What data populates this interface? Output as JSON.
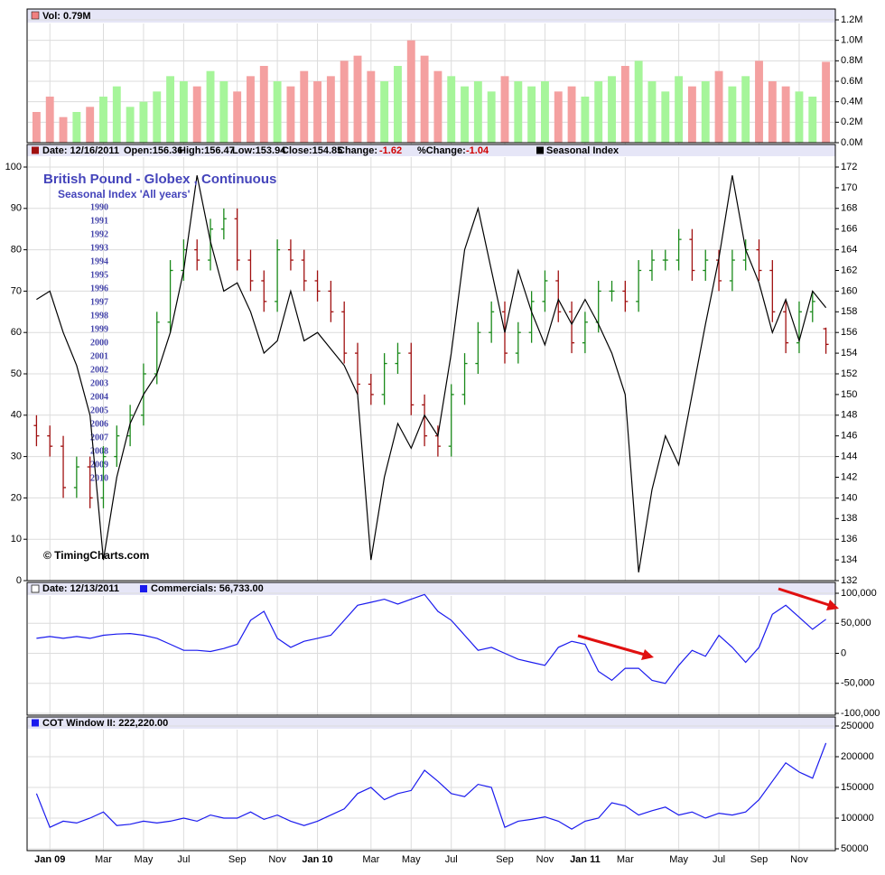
{
  "chart_data": [
    {
      "type": "bar",
      "legend": "Vol: 0.79M",
      "values": [
        0.3,
        0.45,
        0.25,
        0.3,
        0.35,
        0.45,
        0.55,
        0.35,
        0.4,
        0.5,
        0.65,
        0.6,
        0.55,
        0.7,
        0.6,
        0.5,
        0.65,
        0.75,
        0.6,
        0.55,
        0.7,
        0.6,
        0.65,
        0.8,
        0.85,
        0.7,
        0.6,
        0.75,
        1.0,
        0.85,
        0.7,
        0.65,
        0.55,
        0.6,
        0.5,
        0.65,
        0.6,
        0.55,
        0.6,
        0.5,
        0.55,
        0.45,
        0.6,
        0.65,
        0.75,
        0.8,
        0.6,
        0.5,
        0.65,
        0.55,
        0.6,
        0.7,
        0.55,
        0.65,
        0.8,
        0.6,
        0.55,
        0.5,
        0.45,
        0.79
      ],
      "up_color": "#a6f59a",
      "down_color": "#f4a0a0",
      "ylim": [
        0,
        1.2
      ],
      "yticks": [
        {
          "value": 0,
          "label": "0.0M"
        },
        {
          "value": 0.2,
          "label": "0.2M"
        },
        {
          "value": 0.4,
          "label": "0.4M"
        },
        {
          "value": 0.6,
          "label": "0.6M"
        },
        {
          "value": 0.8,
          "label": "0.8M"
        },
        {
          "value": 1.0,
          "label": "1.0M"
        },
        {
          "value": 1.2,
          "label": "1.2M"
        }
      ],
      "grid": true
    },
    {
      "type": "ohlc",
      "header": {
        "date": "Date: 12/16/2011",
        "open": "Open:156.36",
        "high": "High:156.47",
        "low": "Low:153.94",
        "close": "Close:154.85",
        "change_label": "Change:",
        "change": "-1.62",
        "pct_change_label": "%Change:",
        "pct_change": "-1.04"
      },
      "title": "British Pound - Globex , Continuous",
      "subtitle": "Seasonal Index 'All years'",
      "years": [
        "1990",
        "1991",
        "1992",
        "1993",
        "1994",
        "1995",
        "1996",
        "1997",
        "1998",
        "1999",
        "2000",
        "2001",
        "2002",
        "2003",
        "2004",
        "2005",
        "2006",
        "2007",
        "2008",
        "2009",
        "2010"
      ],
      "watermark": "© TimingCharts.com",
      "open": [
        147,
        146,
        145,
        141,
        143,
        140,
        144,
        146,
        148,
        152,
        157,
        162,
        164,
        163,
        166,
        167,
        163,
        161,
        159,
        164,
        163,
        161,
        160,
        158,
        154,
        151,
        150,
        153,
        154,
        149,
        146,
        145,
        150,
        153,
        156,
        158,
        154,
        156,
        159,
        161,
        158,
        155,
        157,
        160,
        160,
        159,
        162,
        163,
        163,
        165,
        162,
        163,
        161,
        163,
        164,
        162,
        158,
        155,
        158,
        156.36
      ],
      "high": [
        148,
        147,
        146,
        144,
        144,
        145,
        147,
        149,
        153,
        158,
        163,
        165,
        165,
        167,
        168,
        168,
        164,
        162,
        165,
        165,
        164,
        162,
        161,
        159,
        155,
        152,
        154,
        155,
        155,
        150,
        147,
        151,
        154,
        157,
        159,
        159,
        157,
        160,
        162,
        162,
        159,
        158,
        161,
        161,
        161,
        163,
        164,
        164,
        166,
        166,
        164,
        164,
        164,
        165,
        165,
        163,
        159,
        159,
        160,
        156.47
      ],
      "low": [
        145,
        144,
        140,
        140,
        139,
        139,
        143,
        145,
        147,
        151,
        156,
        161,
        162,
        162,
        165,
        162,
        160,
        158,
        158,
        162,
        160,
        159,
        157,
        153,
        150,
        149,
        149,
        152,
        148,
        145,
        144,
        144,
        149,
        152,
        155,
        153,
        153,
        155,
        158,
        157,
        154,
        154,
        156,
        159,
        158,
        158,
        161,
        162,
        162,
        161,
        161,
        160,
        160,
        162,
        161,
        157,
        154,
        154,
        157,
        153.94
      ],
      "close": [
        146,
        145,
        141,
        143,
        140,
        144,
        146,
        148,
        152,
        157,
        162,
        164,
        163,
        166,
        167,
        163,
        161,
        159,
        164,
        163,
        161,
        160,
        158,
        154,
        151,
        150,
        153,
        154,
        149,
        146,
        145,
        150,
        153,
        156,
        158,
        154,
        156,
        159,
        161,
        158,
        155,
        157,
        160,
        160,
        159,
        162,
        163,
        163,
        165,
        162,
        163,
        161,
        163,
        164,
        162,
        158,
        155,
        158,
        159,
        154.85
      ],
      "up_color": "#1a8a1a",
      "down_color": "#a01010",
      "series": [
        {
          "name": "Seasonal Index",
          "color": "#000000",
          "values": [
            68,
            70,
            60,
            52,
            40,
            5,
            25,
            38,
            45,
            50,
            60,
            75,
            98,
            82,
            70,
            72,
            65,
            55,
            58,
            70,
            58,
            60,
            56,
            52,
            45,
            5,
            25,
            38,
            32,
            40,
            35,
            55,
            80,
            90,
            75,
            60,
            75,
            65,
            57,
            68,
            62,
            68,
            62,
            55,
            45,
            2,
            22,
            35,
            28,
            45,
            62,
            78,
            98,
            80,
            72,
            60,
            68,
            58,
            70,
            66
          ]
        }
      ],
      "ylim": [
        0,
        100
      ],
      "yticks": [
        0,
        10,
        20,
        30,
        40,
        50,
        60,
        70,
        80,
        90,
        100
      ],
      "y2lim": [
        132,
        172
      ],
      "y2ticks": [
        132,
        134,
        136,
        138,
        140,
        142,
        144,
        146,
        148,
        150,
        152,
        154,
        156,
        158,
        160,
        162,
        164,
        166,
        168,
        170,
        172
      ],
      "grid": true
    },
    {
      "type": "line",
      "date": "Date: 12/13/2011",
      "series": [
        {
          "name": "Commercials: 56,733.00",
          "color": "#1a1aee",
          "values": [
            25000,
            28000,
            25000,
            28000,
            25000,
            30000,
            32000,
            33000,
            30000,
            25000,
            15000,
            5000,
            5000,
            3000,
            8000,
            15000,
            55000,
            70000,
            25000,
            10000,
            20000,
            25000,
            30000,
            55000,
            80000,
            85000,
            90000,
            82000,
            90000,
            98000,
            70000,
            55000,
            30000,
            5000,
            10000,
            0,
            -10000,
            -15000,
            -20000,
            10000,
            20000,
            15000,
            -30000,
            -45000,
            -25000,
            -25000,
            -45000,
            -50000,
            -20000,
            5000,
            -5000,
            30000,
            10000,
            -15000,
            10000,
            65000,
            80000,
            60000,
            40000,
            56733
          ]
        }
      ],
      "ylim": [
        -100000,
        100000
      ],
      "yticks": [
        {
          "value": 100000,
          "label": "100,000"
        },
        {
          "value": 50000,
          "label": "50,000"
        },
        0,
        {
          "value": -50000,
          "label": "-50,000"
        },
        {
          "value": -100000,
          "label": "-100,000"
        }
      ],
      "grid": true
    },
    {
      "type": "line",
      "series": [
        {
          "name": "COT Window II: 222,220.00",
          "color": "#1a1aee",
          "values": [
            140000,
            85000,
            95000,
            92000,
            100000,
            110000,
            88000,
            90000,
            95000,
            92000,
            95000,
            100000,
            95000,
            105000,
            100000,
            100000,
            110000,
            98000,
            105000,
            95000,
            88000,
            95000,
            105000,
            115000,
            140000,
            150000,
            130000,
            140000,
            145000,
            178000,
            160000,
            140000,
            135000,
            155000,
            150000,
            85000,
            95000,
            98000,
            102000,
            95000,
            82000,
            95000,
            100000,
            125000,
            120000,
            105000,
            112000,
            118000,
            105000,
            110000,
            100000,
            108000,
            105000,
            110000,
            130000,
            160000,
            190000,
            175000,
            165000,
            222220
          ]
        }
      ],
      "categories": [
        null,
        "Jan 09",
        null,
        null,
        null,
        "Mar",
        null,
        null,
        "May",
        null,
        null,
        "Jul",
        null,
        null,
        null,
        "Sep",
        null,
        null,
        "Nov",
        null,
        null,
        "Jan 10",
        null,
        null,
        null,
        "Mar",
        null,
        null,
        "May",
        null,
        null,
        "Jul",
        null,
        null,
        null,
        "Sep",
        null,
        null,
        "Nov",
        null,
        null,
        "Jan 11",
        null,
        null,
        "Mar",
        null,
        null,
        null,
        "May",
        null,
        null,
        "Jul",
        null,
        null,
        "Sep",
        null,
        null,
        "Nov",
        null,
        null
      ],
      "ylim": [
        50000,
        250000
      ],
      "yticks": [
        250000,
        200000,
        150000,
        100000,
        50000
      ],
      "grid": true
    }
  ]
}
